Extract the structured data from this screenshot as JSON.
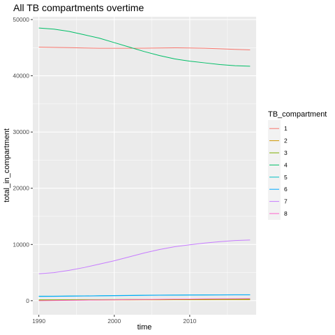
{
  "chart_data": {
    "type": "line",
    "title": "All TB compartments overtime",
    "xlabel": "time",
    "ylabel": "total_in_compartment",
    "xlim": [
      1989.2,
      2018.8
    ],
    "ylim": [
      -2500,
      50500
    ],
    "x_ticks": [
      1990,
      2000,
      2010
    ],
    "y_ticks": [
      0,
      10000,
      20000,
      30000,
      40000,
      50000
    ],
    "x_tick_labels": [
      "1990",
      "2000",
      "2010"
    ],
    "y_tick_labels": [
      "0",
      "10000",
      "20000",
      "30000",
      "40000",
      "50000"
    ],
    "grid": true,
    "legend": {
      "title": "TB_compartment",
      "position": "right"
    },
    "x": [
      1990,
      1992,
      1994,
      1996,
      1998,
      2000,
      2002,
      2004,
      2006,
      2008,
      2010,
      2012,
      2014,
      2016,
      2018
    ],
    "series": [
      {
        "name": "1",
        "color": "#F8766D",
        "values": [
          45100,
          45050,
          45000,
          44950,
          44900,
          44900,
          44900,
          44920,
          44950,
          44980,
          44950,
          44900,
          44800,
          44700,
          44600
        ]
      },
      {
        "name": "2",
        "color": "#CD9600",
        "values": [
          80,
          90,
          100,
          110,
          120,
          130,
          140,
          150,
          160,
          165,
          170,
          175,
          180,
          185,
          190
        ]
      },
      {
        "name": "3",
        "color": "#7CAE00",
        "values": [
          150,
          160,
          170,
          180,
          190,
          200,
          210,
          220,
          230,
          240,
          250,
          255,
          260,
          265,
          270
        ]
      },
      {
        "name": "4",
        "color": "#00BE67",
        "values": [
          48500,
          48300,
          47900,
          47300,
          46700,
          45900,
          45100,
          44300,
          43600,
          43000,
          42600,
          42300,
          42000,
          41800,
          41700
        ]
      },
      {
        "name": "5",
        "color": "#00BFC4",
        "values": [
          800,
          810,
          830,
          850,
          880,
          910,
          940,
          970,
          990,
          1010,
          1020,
          1030,
          1040,
          1050,
          1060
        ]
      },
      {
        "name": "6",
        "color": "#00A9FF",
        "values": [
          760,
          780,
          800,
          830,
          860,
          890,
          920,
          950,
          970,
          990,
          1000,
          1010,
          1020,
          1030,
          1040
        ]
      },
      {
        "name": "7",
        "color": "#C77CFF",
        "values": [
          4800,
          5000,
          5400,
          5900,
          6500,
          7100,
          7800,
          8500,
          9100,
          9600,
          9950,
          10250,
          10500,
          10700,
          10800
        ]
      },
      {
        "name": "8",
        "color": "#FF61CC",
        "values": [
          0,
          30,
          60,
          90,
          120,
          150,
          180,
          210,
          240,
          270,
          300,
          320,
          340,
          360,
          380
        ]
      }
    ]
  }
}
